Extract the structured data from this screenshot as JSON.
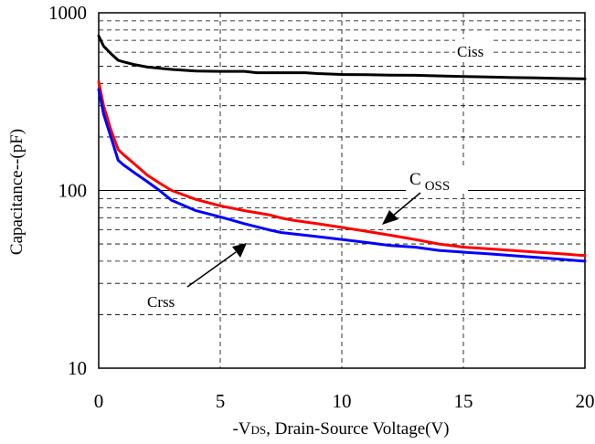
{
  "chart_data": {
    "type": "line",
    "title": "",
    "xlabel": "-VDS, Drain-Source Voltage(V)",
    "xlabel_parts": {
      "prefix": "-V",
      "sub": "DS",
      "suffix": ", Drain-Source Voltage(V)"
    },
    "ylabel": "Capacitance--(pF)",
    "xlim": [
      0,
      20
    ],
    "ylim": [
      10,
      1000
    ],
    "yscale": "log",
    "grid": "dashed, major solid at 100",
    "legend": "none",
    "x_ticks": [
      "0",
      "5",
      "10",
      "15",
      "20"
    ],
    "y_ticks": [
      "10",
      "100",
      "1000"
    ],
    "series": [
      {
        "name": "Ciss",
        "color": "#000000",
        "x": [
          0,
          0.2,
          0.5,
          0.8,
          1,
          1.5,
          2,
          3,
          4,
          5,
          6,
          6.5,
          7,
          8,
          8.5,
          9,
          10,
          11,
          12,
          13,
          13.5,
          15,
          16,
          17,
          18,
          19,
          20
        ],
        "y": [
          740,
          650,
          590,
          540,
          530,
          510,
          495,
          480,
          470,
          468,
          468,
          460,
          460,
          460,
          460,
          455,
          450,
          448,
          446,
          445,
          443,
          438,
          435,
          432,
          430,
          427,
          425
        ]
      },
      {
        "name": "Coss",
        "color": "#ff0000",
        "x": [
          0,
          0.2,
          0.5,
          0.8,
          1,
          1.5,
          2,
          2.5,
          3,
          4,
          5,
          6,
          7,
          7.5,
          8,
          9,
          10,
          11,
          12,
          13,
          14,
          15,
          16,
          17,
          18,
          19,
          20
        ],
        "y": [
          410,
          300,
          220,
          170,
          160,
          140,
          122,
          110,
          100,
          89,
          82,
          77,
          73,
          70,
          68,
          65,
          62,
          59,
          56,
          53,
          50,
          48,
          47,
          46,
          45,
          44,
          43
        ]
      },
      {
        "name": "Crss",
        "color": "#0000ff",
        "x": [
          0,
          0.2,
          0.5,
          0.8,
          1,
          1.5,
          2,
          2.5,
          3,
          4,
          5,
          6,
          7,
          7.5,
          8,
          9,
          10,
          11,
          12,
          13,
          14,
          15,
          16,
          17,
          18,
          19,
          20
        ],
        "y": [
          370,
          270,
          200,
          148,
          140,
          125,
          112,
          100,
          88,
          77,
          71,
          65,
          60,
          58,
          57,
          55,
          53,
          51,
          49,
          48,
          46,
          45,
          44,
          43,
          42,
          41,
          40
        ]
      }
    ],
    "annotations": {
      "ciss": "Ciss",
      "coss_c": "C",
      "coss_sub": "OSS",
      "crss": "Crss"
    }
  }
}
